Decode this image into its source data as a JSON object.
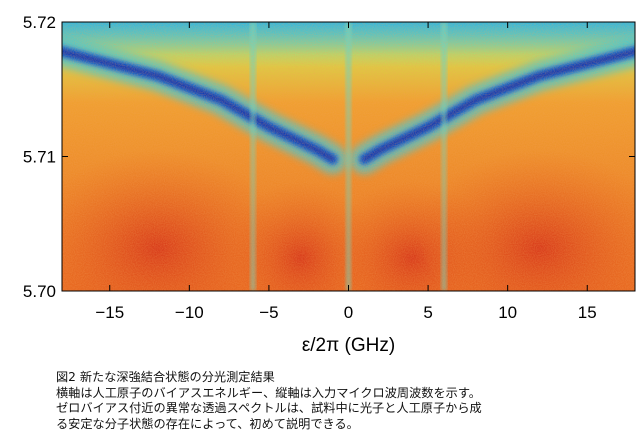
{
  "chart_data": {
    "type": "heatmap",
    "title": "",
    "xlabel": "ε/2π (GHz)",
    "ylabel": "",
    "xlim": [
      -18,
      18
    ],
    "ylim": [
      5.7,
      5.72
    ],
    "x_ticks": [
      -15,
      -10,
      -5,
      0,
      5,
      10,
      15
    ],
    "x_tick_labels": [
      "−15",
      "−10",
      "−5",
      "0",
      "5",
      "10",
      "15"
    ],
    "y_ticks": [
      5.7,
      5.71,
      5.72
    ],
    "y_tick_labels": [
      "5.70",
      "5.71",
      "5.72"
    ],
    "grid": false,
    "colormap": [
      "#0a2fa8",
      "#1f6fd6",
      "#2bb7e0",
      "#7fe0a0",
      "#d8e04a",
      "#f0a030",
      "#e8601c",
      "#c8321a"
    ],
    "features": {
      "low_transmission_branches": [
        {
          "x": [
            -18,
            -12,
            -8,
            -5,
            -2,
            -1
          ],
          "y": [
            5.7178,
            5.716,
            5.7142,
            5.7122,
            5.7105,
            5.7098
          ]
        },
        {
          "x": [
            1,
            2,
            5,
            8,
            12,
            18
          ],
          "y": [
            5.7098,
            5.7105,
            5.7122,
            5.7142,
            5.716,
            5.7178
          ]
        }
      ],
      "narrow_lines_x": [
        -6,
        0,
        6
      ]
    }
  },
  "caption": {
    "lines": [
      "図2 新たな深強結合状態の分光測定結果",
      "横軸は人工原子のバイアスエネルギー、縦軸は入力マイクロ波周波数を示す。",
      "ゼロバイアス付近の異常な透過スペクトルは、試料中に光子と人工原子から成",
      "る安定な分子状態の存在によって、初めて説明できる。"
    ]
  }
}
